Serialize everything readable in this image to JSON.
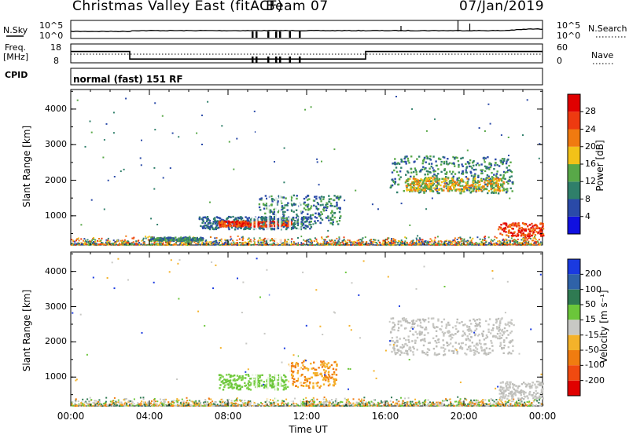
{
  "header": {
    "title": "Christmas Valley East (fitACF)",
    "beam": "Beam 07",
    "date": "07/Jan/2019"
  },
  "status": {
    "nsky_label": "N.Sky",
    "nsky_ticks": [
      "10^5",
      "10^0"
    ],
    "nsearch_label": "N.Search",
    "nsearch_ticks": [
      "10^5",
      "10^0"
    ],
    "freq_label_1": "Freq.",
    "freq_label_2": "[MHz]",
    "freq_ticks": [
      "18",
      "8"
    ],
    "nave_label": "Nave",
    "nave_ticks": [
      "60",
      "0"
    ],
    "cpid_label": "CPID",
    "cpid_text": "normal (fast) 151 RF"
  },
  "axes": {
    "ylabel": "Slant Range [km]",
    "xlabel": "Time UT",
    "y_ticks": [
      "1000",
      "2000",
      "3000",
      "4000"
    ],
    "x_ticks": [
      "00:00",
      "04:00",
      "08:00",
      "12:00",
      "16:00",
      "20:00",
      "00:00"
    ]
  },
  "colorbars": {
    "power": {
      "label": "Power [dB]",
      "ticks": [
        "4",
        "8",
        "12",
        "16",
        "20",
        "24",
        "28"
      ],
      "colors": [
        "#1010e0",
        "#2a4aa8",
        "#2f7f6a",
        "#58a848",
        "#f2c218",
        "#f07a10",
        "#ee3a10",
        "#e00000"
      ]
    },
    "velocity": {
      "label": "Velocity [m s⁻¹]",
      "ticks": [
        "200",
        "100",
        "50",
        "15",
        "-15",
        "-50",
        "-100",
        "-200"
      ],
      "colors": [
        "#1a3ae0",
        "#2f62a8",
        "#2f7a52",
        "#6bc63a",
        "#c8c8c4",
        "#f4b22a",
        "#f07c10",
        "#f04a10",
        "#e00000"
      ]
    }
  },
  "chart_data": {
    "type": "heatmap",
    "x_range_hours": [
      0,
      24
    ],
    "y_range_km": [
      180,
      4550
    ],
    "freq_steps_mhz": [
      [
        0,
        3,
        14
      ],
      [
        3,
        15,
        10
      ],
      [
        15,
        24,
        14
      ]
    ],
    "power_patches": [
      {
        "t0": 4.0,
        "t1": 6.7,
        "r0": 320,
        "r1": 420,
        "level": "green"
      },
      {
        "t0": 6.5,
        "t1": 12.2,
        "r0": 640,
        "r1": 1000,
        "level": "blue"
      },
      {
        "t0": 7.5,
        "t1": 11.2,
        "r0": 720,
        "r1": 880,
        "level": "red"
      },
      {
        "t0": 9.5,
        "t1": 13.7,
        "r0": 780,
        "r1": 1600,
        "level": "green"
      },
      {
        "t0": 16.2,
        "t1": 22.5,
        "r0": 1650,
        "r1": 2700,
        "level": "green"
      },
      {
        "t0": 17.0,
        "t1": 22.0,
        "r0": 1720,
        "r1": 2100,
        "level": "orange"
      },
      {
        "t0": 21.7,
        "t1": 24.0,
        "r0": 450,
        "r1": 820,
        "level": "red"
      }
    ],
    "velocity_patches": [
      {
        "t0": 7.5,
        "t1": 11.0,
        "r0": 660,
        "r1": 1100,
        "level": "15..50"
      },
      {
        "t0": 11.0,
        "t1": 13.5,
        "r0": 700,
        "r1": 1500,
        "level": "-15..-50"
      },
      {
        "t0": 16.2,
        "t1": 22.5,
        "r0": 1650,
        "r1": 2700,
        "level": "-15..15"
      },
      {
        "t0": 21.7,
        "t1": 24.0,
        "r0": 400,
        "r1": 900,
        "level": "-15..15"
      }
    ]
  }
}
